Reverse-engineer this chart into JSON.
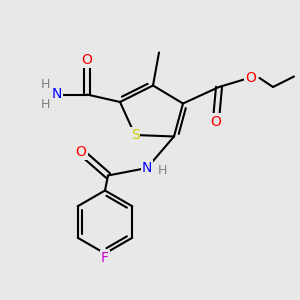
{
  "bg_color": "#e8e8e8",
  "atom_colors": {
    "S": "#cccc00",
    "N": "#0000ff",
    "O": "#ff0000",
    "F": "#cc00cc",
    "C": "#000000",
    "H": "#808080"
  },
  "bond_color": "#000000",
  "bond_width": 1.5
}
